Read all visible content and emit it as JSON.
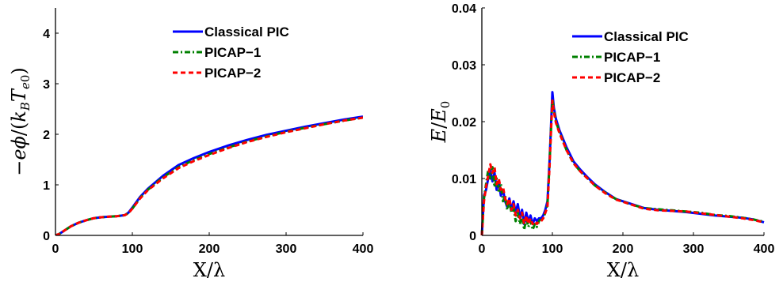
{
  "chart_data": [
    {
      "type": "line",
      "title": "",
      "xlabel": "X/λ",
      "ylabel": "−eϕ/(k_B T_e0)",
      "xlim": [
        0,
        400
      ],
      "ylim": [
        0,
        4.5
      ],
      "xticks": [
        "0",
        "100",
        "200",
        "300",
        "400"
      ],
      "yticks": [
        "0",
        "1",
        "2",
        "3",
        "4"
      ],
      "legend_position": "top-right",
      "series": [
        {
          "name": "Classical PIC",
          "color": "#0000ff",
          "style": "solid",
          "x": [
            0,
            5,
            10,
            20,
            30,
            40,
            50,
            60,
            70,
            80,
            90,
            95,
            100,
            110,
            120,
            140,
            160,
            180,
            200,
            225,
            250,
            275,
            300,
            325,
            350,
            375,
            400
          ],
          "y": [
            0,
            0.03,
            0.08,
            0.18,
            0.25,
            0.3,
            0.34,
            0.36,
            0.37,
            0.38,
            0.4,
            0.45,
            0.55,
            0.76,
            0.92,
            1.18,
            1.39,
            1.53,
            1.65,
            1.78,
            1.89,
            1.99,
            2.07,
            2.15,
            2.22,
            2.29,
            2.35
          ]
        },
        {
          "name": "PICAP−1",
          "color": "#008000",
          "style": "dashdot",
          "x": [
            0,
            5,
            10,
            20,
            30,
            40,
            50,
            60,
            70,
            80,
            90,
            95,
            100,
            110,
            120,
            140,
            160,
            180,
            200,
            225,
            250,
            275,
            300,
            325,
            350,
            375,
            400
          ],
          "y": [
            0,
            0.03,
            0.08,
            0.18,
            0.25,
            0.3,
            0.34,
            0.36,
            0.37,
            0.38,
            0.4,
            0.44,
            0.53,
            0.74,
            0.9,
            1.15,
            1.35,
            1.49,
            1.61,
            1.74,
            1.86,
            1.96,
            2.05,
            2.13,
            2.2,
            2.27,
            2.33
          ]
        },
        {
          "name": "PICAP−2",
          "color": "#ff0000",
          "style": "dashed",
          "x": [
            0,
            5,
            10,
            20,
            30,
            40,
            50,
            60,
            70,
            80,
            90,
            95,
            100,
            110,
            120,
            140,
            160,
            180,
            200,
            225,
            250,
            275,
            300,
            325,
            350,
            375,
            400
          ],
          "y": [
            0,
            0.03,
            0.08,
            0.18,
            0.25,
            0.3,
            0.34,
            0.36,
            0.37,
            0.38,
            0.4,
            0.44,
            0.53,
            0.73,
            0.89,
            1.13,
            1.33,
            1.47,
            1.59,
            1.73,
            1.85,
            1.95,
            2.04,
            2.12,
            2.2,
            2.27,
            2.33
          ]
        }
      ]
    },
    {
      "type": "line",
      "title": "",
      "xlabel": "X/λ",
      "ylabel": "E/E₀",
      "xlim": [
        0,
        400
      ],
      "ylim": [
        0,
        0.04
      ],
      "xticks": [
        "0",
        "100",
        "200",
        "300",
        "400"
      ],
      "yticks": [
        "0",
        "0.01",
        "0.02",
        "0.03",
        "0.04"
      ],
      "legend_position": "top-right",
      "series": [
        {
          "name": "Classical PIC",
          "color": "#0000ff",
          "style": "solid",
          "x": [
            0,
            3,
            6,
            9,
            12,
            15,
            18,
            21,
            24,
            27,
            30,
            33,
            36,
            39,
            42,
            45,
            48,
            51,
            54,
            57,
            60,
            63,
            66,
            69,
            72,
            75,
            78,
            81,
            84,
            87,
            90,
            93,
            96,
            98,
            100,
            102,
            105,
            110,
            120,
            130,
            140,
            150,
            160,
            175,
            190,
            210,
            230,
            250,
            270,
            290,
            310,
            330,
            350,
            370,
            385,
            400
          ],
          "y": [
            0,
            0.007,
            0.008,
            0.01,
            0.0115,
            0.0095,
            0.011,
            0.008,
            0.0095,
            0.007,
            0.008,
            0.006,
            0.005,
            0.0065,
            0.0045,
            0.006,
            0.004,
            0.0055,
            0.003,
            0.0045,
            0.002,
            0.004,
            0.0025,
            0.0035,
            0.002,
            0.003,
            0.0025,
            0.003,
            0.003,
            0.0035,
            0.0045,
            0.006,
            0.013,
            0.019,
            0.0252,
            0.0225,
            0.0205,
            0.0185,
            0.0155,
            0.013,
            0.0115,
            0.0102,
            0.009,
            0.0076,
            0.0064,
            0.0056,
            0.0048,
            0.0045,
            0.0043,
            0.0041,
            0.0038,
            0.0035,
            0.0033,
            0.0031,
            0.0028,
            0.0023
          ]
        },
        {
          "name": "PICAP−1",
          "color": "#008000",
          "style": "dashdot",
          "x": [
            0,
            3,
            6,
            9,
            12,
            15,
            18,
            21,
            24,
            27,
            30,
            33,
            36,
            39,
            42,
            45,
            48,
            51,
            54,
            57,
            60,
            63,
            66,
            69,
            72,
            75,
            78,
            81,
            84,
            87,
            90,
            93,
            96,
            98,
            100,
            102,
            105,
            110,
            120,
            130,
            140,
            150,
            160,
            175,
            190,
            210,
            230,
            250,
            270,
            290,
            310,
            330,
            350,
            370,
            385,
            400
          ],
          "y": [
            0,
            0.0065,
            0.009,
            0.0115,
            0.01,
            0.012,
            0.0085,
            0.01,
            0.0075,
            0.009,
            0.006,
            0.007,
            0.0045,
            0.006,
            0.004,
            0.005,
            0.0025,
            0.004,
            0.002,
            0.0035,
            0.001,
            0.003,
            0.0015,
            0.0025,
            0.001,
            0.002,
            0.0015,
            0.0025,
            0.003,
            0.003,
            0.004,
            0.0055,
            0.0125,
            0.0185,
            0.024,
            0.0222,
            0.02,
            0.0182,
            0.015,
            0.0127,
            0.0112,
            0.01,
            0.0088,
            0.0075,
            0.0064,
            0.0055,
            0.0048,
            0.0046,
            0.0044,
            0.0042,
            0.004,
            0.0036,
            0.0034,
            0.0031,
            0.0028,
            0.0024
          ]
        },
        {
          "name": "PICAP−2",
          "color": "#ff0000",
          "style": "dashed",
          "x": [
            0,
            3,
            6,
            9,
            12,
            15,
            18,
            21,
            24,
            27,
            30,
            33,
            36,
            39,
            42,
            45,
            48,
            51,
            54,
            57,
            60,
            63,
            66,
            69,
            72,
            75,
            78,
            81,
            84,
            87,
            90,
            93,
            96,
            98,
            100,
            102,
            105,
            110,
            120,
            130,
            140,
            150,
            160,
            175,
            190,
            210,
            230,
            250,
            270,
            290,
            310,
            330,
            350,
            370,
            385,
            400
          ],
          "y": [
            0,
            0.006,
            0.0085,
            0.0105,
            0.0125,
            0.011,
            0.012,
            0.009,
            0.01,
            0.008,
            0.0085,
            0.0065,
            0.0055,
            0.0065,
            0.0045,
            0.0055,
            0.0035,
            0.0045,
            0.003,
            0.004,
            0.002,
            0.0035,
            0.002,
            0.003,
            0.002,
            0.0025,
            0.002,
            0.0025,
            0.0025,
            0.003,
            0.004,
            0.005,
            0.012,
            0.018,
            0.0237,
            0.0218,
            0.0198,
            0.018,
            0.015,
            0.0127,
            0.0112,
            0.01,
            0.0088,
            0.0074,
            0.0063,
            0.0055,
            0.0047,
            0.0044,
            0.0043,
            0.0042,
            0.0039,
            0.0036,
            0.0033,
            0.003,
            0.0027,
            0.0023
          ]
        }
      ]
    }
  ]
}
